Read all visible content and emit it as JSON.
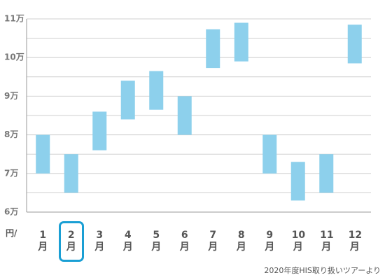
{
  "chart_data": {
    "type": "range-bar",
    "categories": [
      "1月",
      "2月",
      "3月",
      "4月",
      "5月",
      "6月",
      "7月",
      "8月",
      "9月",
      "10月",
      "11月",
      "12月"
    ],
    "low": [
      70000,
      65000,
      76000,
      84000,
      86500,
      80000,
      97300,
      99000,
      70000,
      63000,
      65000,
      98500
    ],
    "high": [
      80000,
      75000,
      86000,
      94000,
      96500,
      90000,
      107300,
      109000,
      80000,
      73000,
      75000,
      108500
    ],
    "color": "#8dd0ec",
    "ylim": [
      60000,
      110000
    ],
    "yticks": [
      {
        "value": 60000,
        "label": "6万"
      },
      {
        "value": 70000,
        "label": "7万"
      },
      {
        "value": 80000,
        "label": "8万"
      },
      {
        "value": 90000,
        "label": "9万"
      },
      {
        "value": 100000,
        "label": "10万"
      },
      {
        "value": 110000,
        "label": "11万"
      }
    ],
    "minor_yticks": [
      65000,
      75000,
      85000,
      95000,
      105000
    ],
    "grid": true,
    "y_unit": "円/",
    "highlight_category": "2月",
    "highlight_color": "#1a9fd4",
    "source": "2020年度HIS取り扱いツアーより"
  }
}
